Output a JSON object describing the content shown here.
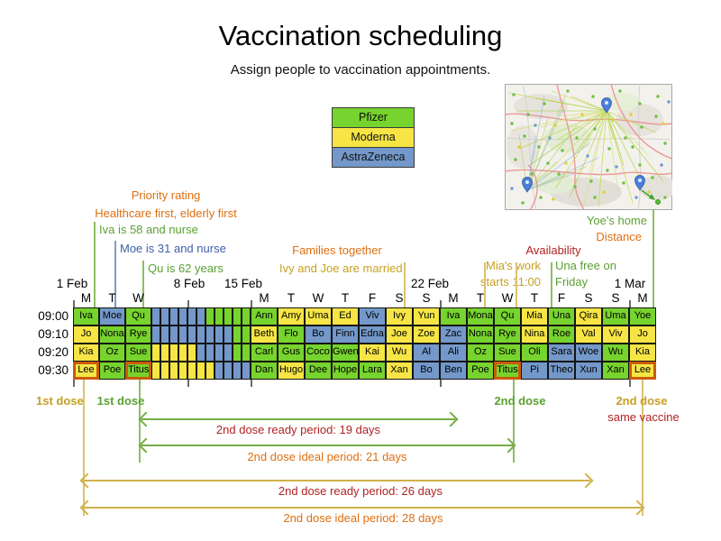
{
  "title": "Vaccination scheduling",
  "subtitle": "Assign people to vaccination appointments.",
  "legend": [
    {
      "label": "Pfizer",
      "vaccine": "P"
    },
    {
      "label": "Moderna",
      "vaccine": "M"
    },
    {
      "label": "AstraZeneca",
      "vaccine": "A"
    }
  ],
  "colors": {
    "P": "#77d32d",
    "M": "#f6e545",
    "A": "#7398c9"
  },
  "annotations": {
    "priority_rating": "Priority rating",
    "priority_detail": "Healthcare first, elderly first",
    "iva": "Iva is 58 and nurse",
    "moe": "Moe is 31 and nurse",
    "qu": "Qu is 62 years",
    "families": "Families together",
    "ivy_joe": "Ivy and Joe are married",
    "availability": "Availability",
    "mia_line1": "Mia's work",
    "mia_line2": "starts 11:00",
    "una_line1": "Una free on",
    "una_line2": "Friday",
    "yoe_home": "Yoe's home",
    "distance": "Distance"
  },
  "dates": [
    "1 Feb",
    "8 Feb",
    "15 Feb",
    "22 Feb",
    "1 Mar"
  ],
  "schedule": {
    "times": [
      "09:00",
      "09:10",
      "09:20",
      "09:30"
    ],
    "week1_days": [
      "M",
      "T",
      "W"
    ],
    "week3_days": [
      "M",
      "T",
      "W",
      "T",
      "F",
      "S",
      "S",
      "M",
      "T",
      "W",
      "T",
      "F",
      "S",
      "S",
      "M"
    ],
    "rows": [
      {
        "week1": [
          {
            "n": "Iva",
            "v": "P"
          },
          {
            "n": "Moe",
            "v": "A"
          },
          {
            "n": "Qu",
            "v": "P"
          }
        ],
        "mid": [
          "A",
          "A",
          "A",
          "A",
          "A",
          "A",
          "P",
          "P",
          "P",
          "P",
          "P"
        ],
        "week3": [
          {
            "n": "Ann",
            "v": "P"
          },
          {
            "n": "Amy",
            "v": "M"
          },
          {
            "n": "Uma",
            "v": "M"
          },
          {
            "n": "Ed",
            "v": "M"
          },
          {
            "n": "Viv",
            "v": "A"
          },
          {
            "n": "Ivy",
            "v": "M"
          },
          {
            "n": "Yun",
            "v": "M"
          },
          {
            "n": "Iva",
            "v": "P"
          },
          {
            "n": "Mona",
            "v": "P"
          },
          {
            "n": "Qu",
            "v": "P"
          },
          {
            "n": "Mia",
            "v": "M"
          },
          {
            "n": "Una",
            "v": "P"
          },
          {
            "n": "Qira",
            "v": "M"
          },
          {
            "n": "Uma",
            "v": "P"
          },
          {
            "n": "Yoe",
            "v": "P"
          }
        ]
      },
      {
        "week1": [
          {
            "n": "Jo",
            "v": "M"
          },
          {
            "n": "Nona",
            "v": "P"
          },
          {
            "n": "Rye",
            "v": "P"
          }
        ],
        "mid": [
          "A",
          "A",
          "A",
          "A",
          "A",
          "A",
          "A",
          "A",
          "A",
          "P",
          "P"
        ],
        "week3": [
          {
            "n": "Beth",
            "v": "M"
          },
          {
            "n": "Flo",
            "v": "P"
          },
          {
            "n": "Bo",
            "v": "A"
          },
          {
            "n": "Finn",
            "v": "A"
          },
          {
            "n": "Edna",
            "v": "A"
          },
          {
            "n": "Joe",
            "v": "M"
          },
          {
            "n": "Zoe",
            "v": "M"
          },
          {
            "n": "Zac",
            "v": "A"
          },
          {
            "n": "Nona",
            "v": "P"
          },
          {
            "n": "Rye",
            "v": "P"
          },
          {
            "n": "Nina",
            "v": "M"
          },
          {
            "n": "Roe",
            "v": "P"
          },
          {
            "n": "Val",
            "v": "M"
          },
          {
            "n": "Viv",
            "v": "M"
          },
          {
            "n": "Jo",
            "v": "M"
          }
        ]
      },
      {
        "week1": [
          {
            "n": "Kia",
            "v": "M"
          },
          {
            "n": "Oz",
            "v": "P"
          },
          {
            "n": "Sue",
            "v": "P"
          }
        ],
        "mid": [
          "M",
          "M",
          "M",
          "M",
          "M",
          "A",
          "A",
          "A",
          "A",
          "P",
          "P"
        ],
        "week3": [
          {
            "n": "Carl",
            "v": "P"
          },
          {
            "n": "Gus",
            "v": "P"
          },
          {
            "n": "Coco",
            "v": "P"
          },
          {
            "n": "Gwen",
            "v": "P"
          },
          {
            "n": "Kai",
            "v": "M"
          },
          {
            "n": "Wu",
            "v": "M"
          },
          {
            "n": "Al",
            "v": "A"
          },
          {
            "n": "Ali",
            "v": "A"
          },
          {
            "n": "Oz",
            "v": "P"
          },
          {
            "n": "Sue",
            "v": "P"
          },
          {
            "n": "Oli",
            "v": "P"
          },
          {
            "n": "Sara",
            "v": "A"
          },
          {
            "n": "Woe",
            "v": "A"
          },
          {
            "n": "Wu",
            "v": "P"
          },
          {
            "n": "Kia",
            "v": "M"
          }
        ]
      },
      {
        "week1": [
          {
            "n": "Lee",
            "v": "M",
            "h": true
          },
          {
            "n": "Poe",
            "v": "P"
          },
          {
            "n": "Titus",
            "v": "P",
            "h": true
          }
        ],
        "mid": [
          "M",
          "M",
          "M",
          "M",
          "M",
          "M",
          "M",
          "A",
          "A",
          "A",
          "A"
        ],
        "week3": [
          {
            "n": "Dan",
            "v": "P"
          },
          {
            "n": "Hugo",
            "v": "M"
          },
          {
            "n": "Dee",
            "v": "P"
          },
          {
            "n": "Hope",
            "v": "P"
          },
          {
            "n": "Lara",
            "v": "P"
          },
          {
            "n": "Xan",
            "v": "M"
          },
          {
            "n": "Bo",
            "v": "A"
          },
          {
            "n": "Ben",
            "v": "A"
          },
          {
            "n": "Poe",
            "v": "P"
          },
          {
            "n": "Titus",
            "v": "P",
            "h": true
          },
          {
            "n": "Pi",
            "v": "A"
          },
          {
            "n": "Theo",
            "v": "A"
          },
          {
            "n": "Xun",
            "v": "A"
          },
          {
            "n": "Xan",
            "v": "P"
          },
          {
            "n": "Lee",
            "v": "M",
            "h": true
          }
        ]
      }
    ]
  },
  "doses": {
    "first_dose_yellow": "1st dose",
    "first_dose_green": "1st dose",
    "second_dose_green": "2nd dose",
    "second_dose_yellow": "2nd dose",
    "same_vaccine": "same vaccine"
  },
  "arrows": [
    {
      "label": "2nd dose ready period: 19 days"
    },
    {
      "label": "2nd dose ideal period: 21 days"
    },
    {
      "label": "2nd dose ready period: 26 days"
    },
    {
      "label": "2nd dose ideal period: 28 days"
    }
  ]
}
